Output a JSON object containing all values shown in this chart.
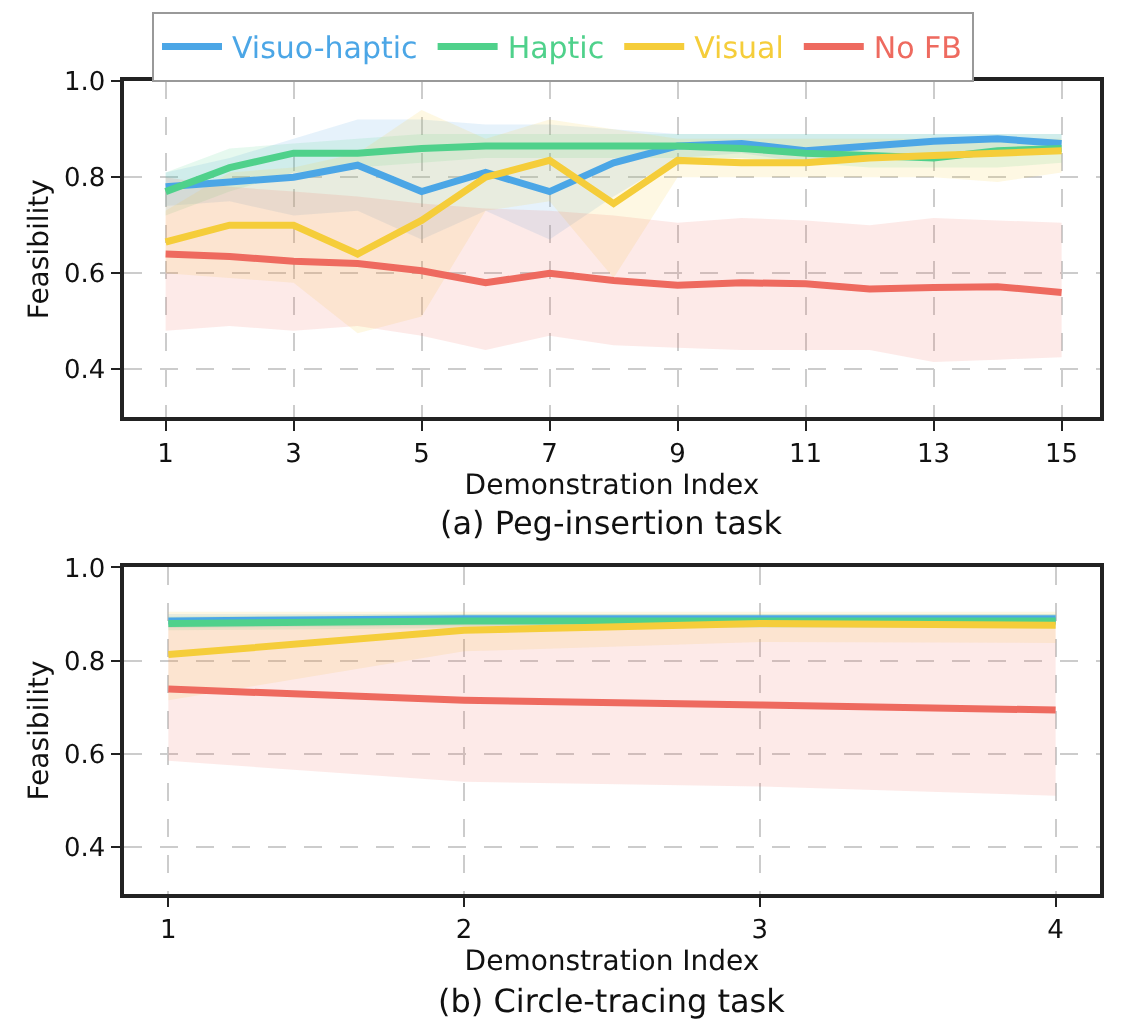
{
  "chart_data": [
    {
      "type": "line",
      "title": "(a) Peg-insertion task",
      "xlabel": "Demonstration Index",
      "ylabel": "Feasibility",
      "x": [
        1,
        2,
        3,
        4,
        5,
        6,
        7,
        8,
        9,
        10,
        11,
        12,
        13,
        14,
        15
      ],
      "xlim": [
        0.35,
        15.6
      ],
      "xticks": [
        1,
        3,
        5,
        7,
        9,
        11,
        13,
        15
      ],
      "ylim": [
        0.3,
        1.0
      ],
      "yticks": [
        0.4,
        0.6,
        0.8,
        {
          "value": 1.0,
          "label": "1.0"
        }
      ],
      "grid": true,
      "legend": "top",
      "line_style": "solid",
      "series": [
        {
          "name": "Visuo-haptic",
          "color": "#4ba6e6",
          "values": [
            0.78,
            0.79,
            0.8,
            0.825,
            0.77,
            0.81,
            0.77,
            0.83,
            0.865,
            0.87,
            0.855,
            0.865,
            0.875,
            0.88,
            0.87
          ],
          "lower": [
            0.74,
            0.75,
            0.72,
            0.73,
            0.67,
            0.73,
            0.67,
            0.76,
            0.84,
            0.85,
            0.83,
            0.84,
            0.85,
            0.86,
            0.85
          ],
          "upper": [
            0.81,
            0.84,
            0.88,
            0.92,
            0.92,
            0.91,
            0.91,
            0.9,
            0.89,
            0.89,
            0.89,
            0.89,
            0.89,
            0.89,
            0.89
          ]
        },
        {
          "name": "Haptic",
          "color": "#4fd18b",
          "values": [
            0.77,
            0.82,
            0.85,
            0.85,
            0.86,
            0.865,
            0.865,
            0.865,
            0.865,
            0.86,
            0.85,
            0.845,
            0.84,
            0.855,
            0.86
          ],
          "lower": [
            0.72,
            0.77,
            0.81,
            0.82,
            0.83,
            0.84,
            0.84,
            0.84,
            0.84,
            0.84,
            0.83,
            0.82,
            0.82,
            0.82,
            0.83
          ],
          "upper": [
            0.81,
            0.86,
            0.87,
            0.88,
            0.89,
            0.89,
            0.89,
            0.89,
            0.89,
            0.89,
            0.89,
            0.89,
            0.89,
            0.89,
            0.89
          ]
        },
        {
          "name": "Visual",
          "color": "#f5cd3a",
          "values": [
            0.665,
            0.7,
            0.7,
            0.64,
            0.71,
            0.8,
            0.835,
            0.745,
            0.835,
            0.83,
            0.83,
            0.84,
            0.845,
            0.85,
            0.855
          ],
          "lower": [
            0.6,
            0.59,
            0.58,
            0.475,
            0.51,
            0.73,
            0.75,
            0.59,
            0.8,
            0.8,
            0.8,
            0.8,
            0.8,
            0.79,
            0.81
          ],
          "upper": [
            0.73,
            0.81,
            0.82,
            0.85,
            0.94,
            0.88,
            0.92,
            0.9,
            0.88,
            0.88,
            0.88,
            0.88,
            0.88,
            0.88,
            0.88
          ]
        },
        {
          "name": "No FB",
          "color": "#ee6a5f",
          "values": [
            0.64,
            0.635,
            0.625,
            0.62,
            0.605,
            0.58,
            0.6,
            0.585,
            0.575,
            0.58,
            0.578,
            0.567,
            0.57,
            0.572,
            0.56
          ],
          "lower": [
            0.48,
            0.49,
            0.48,
            0.49,
            0.47,
            0.44,
            0.47,
            0.45,
            0.445,
            0.44,
            0.44,
            0.44,
            0.415,
            0.42,
            0.425
          ],
          "upper": [
            0.8,
            0.78,
            0.77,
            0.76,
            0.745,
            0.735,
            0.73,
            0.72,
            0.705,
            0.715,
            0.71,
            0.7,
            0.715,
            0.71,
            0.705
          ]
        }
      ]
    },
    {
      "type": "line",
      "title": "(b) Circle-tracing task",
      "xlabel": "Demonstration Index",
      "ylabel": "Feasibility",
      "x": [
        1,
        2,
        3,
        4
      ],
      "xlim": [
        0.85,
        4.15
      ],
      "xticks": [
        1,
        2,
        3,
        4
      ],
      "ylim": [
        0.3,
        1.0
      ],
      "yticks": [
        0.4,
        0.6,
        0.8,
        {
          "value": 1.0,
          "label": "1.0"
        }
      ],
      "grid": true,
      "line_style": "solid",
      "series": [
        {
          "color": "#4ba6e6",
          "values": [
            0.885,
            0.89,
            0.89,
            0.89
          ],
          "lower": [
            0.87,
            0.875,
            0.875,
            0.875
          ],
          "upper": [
            0.9,
            0.9,
            0.9,
            0.9
          ]
        },
        {
          "color": "#4fd18b",
          "values": [
            0.88,
            0.885,
            0.885,
            0.885
          ],
          "lower": [
            0.865,
            0.87,
            0.87,
            0.87
          ],
          "upper": [
            0.895,
            0.9,
            0.9,
            0.9
          ]
        },
        {
          "color": "#f5cd3a",
          "values": [
            0.813,
            0.865,
            0.88,
            0.876
          ],
          "lower": [
            0.715,
            0.82,
            0.84,
            0.838
          ],
          "upper": [
            0.905,
            0.905,
            0.905,
            0.905
          ]
        },
        {
          "color": "#ee6a5f",
          "values": [
            0.739,
            0.715,
            0.705,
            0.694
          ],
          "lower": [
            0.585,
            0.54,
            0.53,
            0.51
          ],
          "upper": [
            0.89,
            0.89,
            0.89,
            0.89
          ]
        }
      ]
    }
  ]
}
